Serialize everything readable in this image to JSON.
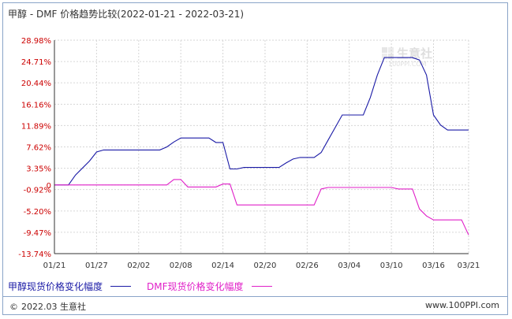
{
  "title": "甲醇 - DMF 价格趋势比较(2022-01-21 - 2022-03-21)",
  "watermark": "生意社",
  "watermark_url": "100PPI.COM",
  "footer": {
    "left": "2022.03 生意社",
    "right": "www.100PPI.com"
  },
  "colors": {
    "series1": "#1a1aa6",
    "series2": "#e020c8",
    "grid": "#d6d6d6",
    "axis": "#333333",
    "ytick": "#cc0000"
  },
  "chart_data": {
    "type": "line",
    "title": "甲醇 - DMF 价格趋势比较(2022-01-21 - 2022-03-21)",
    "xlabel": "",
    "ylabel": "",
    "x_ticks": [
      "01/21",
      "01/27",
      "02/02",
      "02/08",
      "02/14",
      "02/20",
      "02/26",
      "03/04",
      "03/10",
      "03/16",
      "03/21"
    ],
    "y_ticks": [
      "28.98%",
      "24.71%",
      "20.44%",
      "16.16%",
      "11.89%",
      "7.62%",
      "3.35%",
      "0",
      "-0.92%",
      "-5.20%",
      "-9.47%",
      "-13.74%"
    ],
    "ylim": [
      -13.74,
      28.98
    ],
    "xlim": [
      "2022-01-21",
      "2022-03-21"
    ],
    "grid": true,
    "legend_position": "bottom-left",
    "series": [
      {
        "name": "甲醇现货价格变化幅度",
        "points": [
          [
            "2022-01-21",
            0
          ],
          [
            "2022-01-22",
            0
          ],
          [
            "2022-01-23",
            0
          ],
          [
            "2022-01-24",
            2.0
          ],
          [
            "2022-01-25",
            3.4
          ],
          [
            "2022-01-26",
            4.8
          ],
          [
            "2022-01-27",
            6.6
          ],
          [
            "2022-01-28",
            7.0
          ],
          [
            "2022-02-01",
            7.0
          ],
          [
            "2022-02-05",
            7.0
          ],
          [
            "2022-02-06",
            7.6
          ],
          [
            "2022-02-07",
            8.6
          ],
          [
            "2022-02-08",
            9.4
          ],
          [
            "2022-02-12",
            9.4
          ],
          [
            "2022-02-13",
            8.5
          ],
          [
            "2022-02-14",
            8.5
          ],
          [
            "2022-02-15",
            3.2
          ],
          [
            "2022-02-16",
            3.2
          ],
          [
            "2022-02-17",
            3.5
          ],
          [
            "2022-02-22",
            3.5
          ],
          [
            "2022-02-23",
            4.4
          ],
          [
            "2022-02-24",
            5.2
          ],
          [
            "2022-02-25",
            5.5
          ],
          [
            "2022-02-27",
            5.5
          ],
          [
            "2022-02-28",
            6.5
          ],
          [
            "2022-03-01",
            9.0
          ],
          [
            "2022-03-02",
            11.5
          ],
          [
            "2022-03-03",
            14.0
          ],
          [
            "2022-03-06",
            14.0
          ],
          [
            "2022-03-07",
            17.5
          ],
          [
            "2022-03-08",
            22.0
          ],
          [
            "2022-03-09",
            25.5
          ],
          [
            "2022-03-13",
            25.5
          ],
          [
            "2022-03-14",
            25.0
          ],
          [
            "2022-03-15",
            22.0
          ],
          [
            "2022-03-16",
            14.0
          ],
          [
            "2022-03-17",
            12.0
          ],
          [
            "2022-03-18",
            11.0
          ],
          [
            "2022-03-21",
            11.0
          ]
        ]
      },
      {
        "name": "DMF现货价格变化幅度",
        "points": [
          [
            "2022-01-21",
            0
          ],
          [
            "2022-02-06",
            0
          ],
          [
            "2022-02-07",
            1.1
          ],
          [
            "2022-02-08",
            1.1
          ],
          [
            "2022-02-09",
            -0.4
          ],
          [
            "2022-02-13",
            -0.4
          ],
          [
            "2022-02-14",
            0.2
          ],
          [
            "2022-02-15",
            0.2
          ],
          [
            "2022-02-16",
            -4.0
          ],
          [
            "2022-02-27",
            -4.0
          ],
          [
            "2022-02-28",
            -0.8
          ],
          [
            "2022-03-01",
            -0.5
          ],
          [
            "2022-03-10",
            -0.5
          ],
          [
            "2022-03-11",
            -0.8
          ],
          [
            "2022-03-13",
            -0.8
          ],
          [
            "2022-03-14",
            -4.8
          ],
          [
            "2022-03-15",
            -6.2
          ],
          [
            "2022-03-16",
            -7.0
          ],
          [
            "2022-03-20",
            -7.0
          ],
          [
            "2022-03-21",
            -10.0
          ]
        ]
      }
    ]
  }
}
